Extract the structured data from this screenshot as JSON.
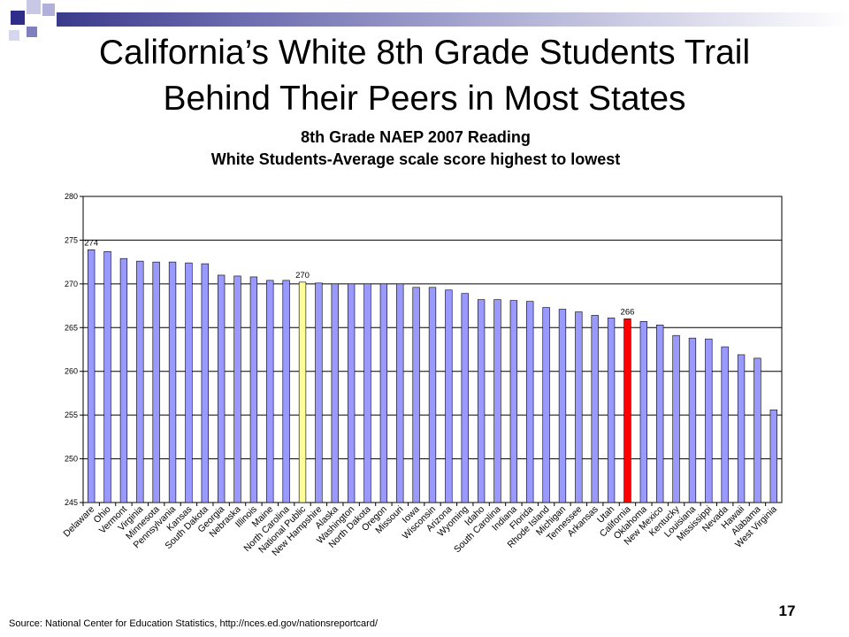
{
  "slide": {
    "title_line1": "California’s White 8th Grade Students Trail",
    "title_line2": "Behind Their Peers in Most States",
    "page_number": "17",
    "source": "Source: National Center for Education Statistics, http://nces.ed.gov/nationsreportcard/"
  },
  "colors": {
    "bar": "#9999ff",
    "highlight_national": "#ffff99",
    "highlight_california": "#ff0000",
    "bar_outline": "#000000",
    "gridline": "#000000",
    "plot_background": "#ffffff"
  },
  "chart_data": {
    "type": "bar",
    "title": "8th Grade NAEP 2007 Reading",
    "subtitle": "White Students-Average scale score highest to lowest",
    "categories": [
      "Delaware",
      "Ohio",
      "Vermont",
      "Virginia",
      "Minnesota",
      "Pennsylvania",
      "Kansas",
      "South Dakota",
      "Georgia",
      "Nebraska",
      "Illinois",
      "Maine",
      "North Carolina",
      "National Public",
      "New Hampshire",
      "Alaska",
      "Washington",
      "North Dakota",
      "Oregon",
      "Missouri",
      "Iowa",
      "Wisconsin",
      "Arizona",
      "Wyoming",
      "Idaho",
      "South Carolina",
      "Indiana",
      "Florida",
      "Rhode Island",
      "Michigan",
      "Tennessee",
      "Arkansas",
      "Utah",
      "California",
      "Oklahoma",
      "New Mexico",
      "Kentucky",
      "Louisiana",
      "Mississippi",
      "Nevada",
      "Hawaii",
      "Alabama",
      "West Virginia"
    ],
    "values": [
      273.9,
      273.7,
      272.9,
      272.6,
      272.5,
      272.5,
      272.4,
      272.3,
      271.0,
      270.9,
      270.8,
      270.4,
      270.4,
      270.2,
      270.1,
      270.0,
      270.0,
      270.0,
      270.0,
      270.0,
      269.6,
      269.6,
      269.3,
      268.9,
      268.2,
      268.2,
      268.1,
      268.0,
      267.3,
      267.1,
      266.8,
      266.4,
      266.1,
      266.0,
      265.7,
      265.3,
      264.1,
      263.8,
      263.7,
      262.8,
      261.9,
      261.5,
      255.6
    ],
    "highlights": [
      {
        "category": "National Public",
        "role": "national"
      },
      {
        "category": "California",
        "role": "california"
      }
    ],
    "data_labels": [
      {
        "category": "Delaware",
        "text": "274"
      },
      {
        "category": "National Public",
        "text": "270"
      },
      {
        "category": "California",
        "text": "266"
      }
    ],
    "xlabel": "",
    "ylabel": "",
    "ylim": [
      245,
      280
    ],
    "yticks": [
      245,
      250,
      255,
      260,
      265,
      270,
      275,
      280
    ],
    "grid": true,
    "legend": "none"
  }
}
